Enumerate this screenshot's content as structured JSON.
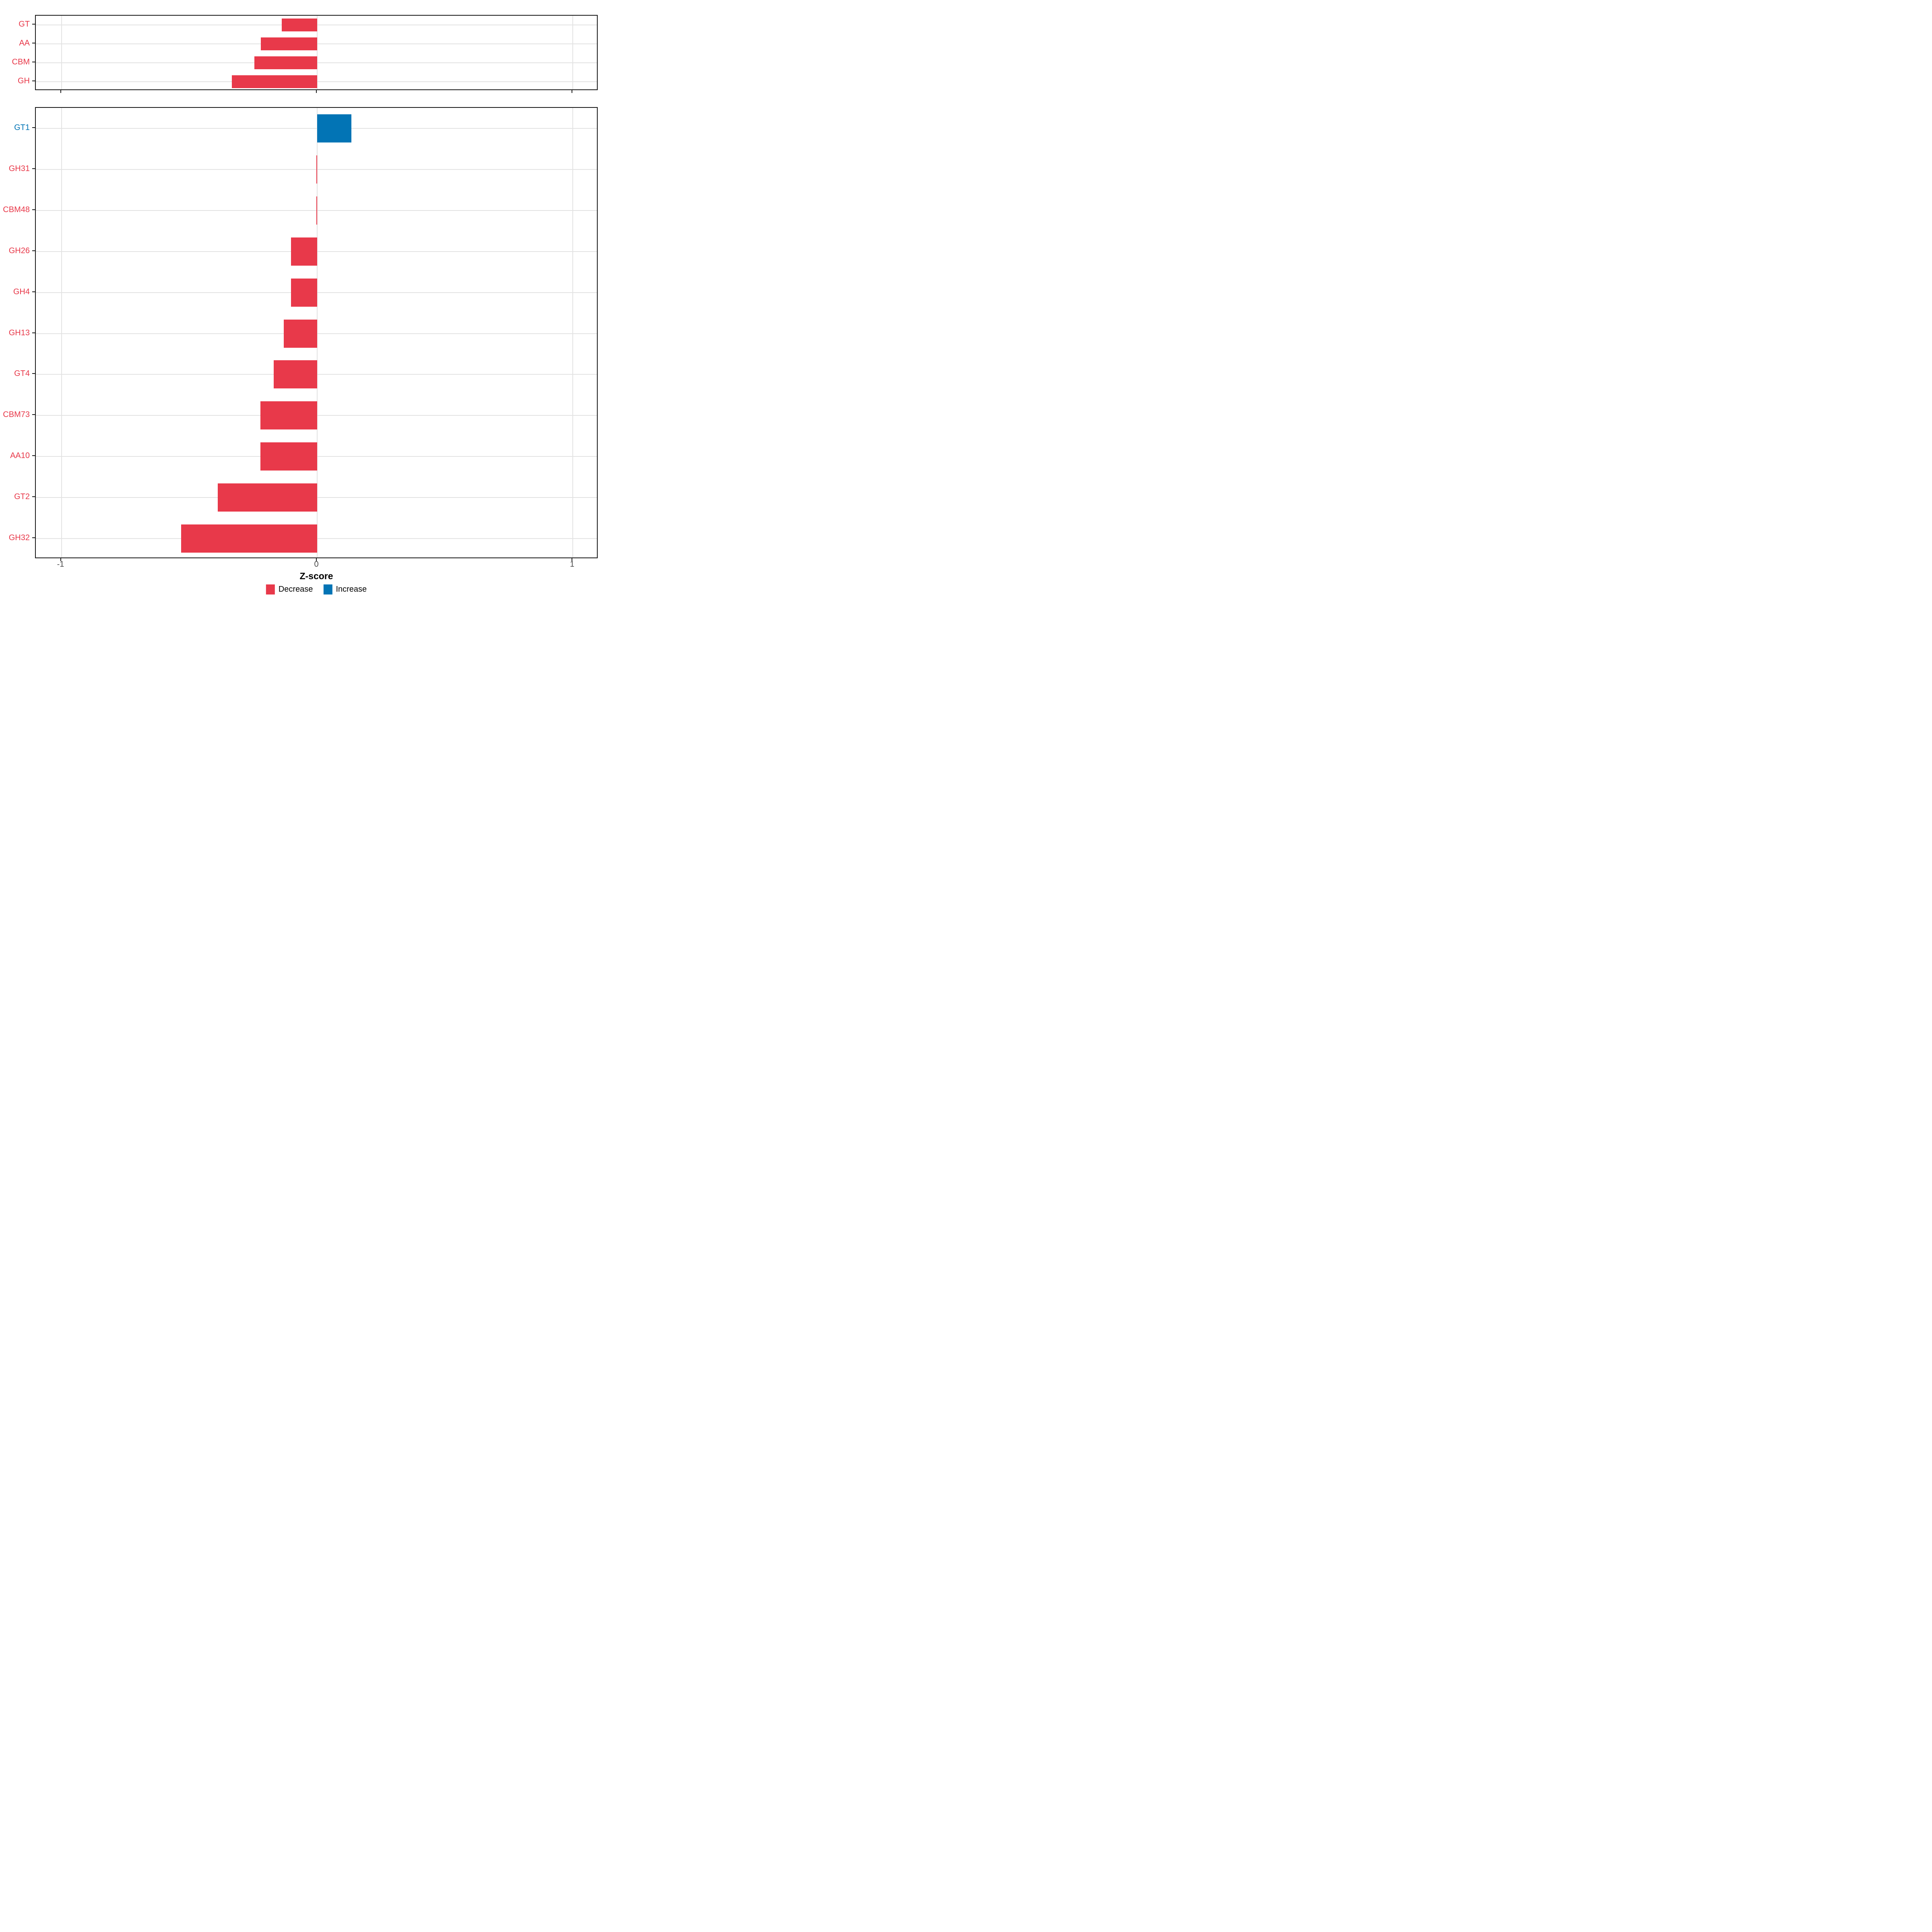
{
  "chart_data": {
    "type": "bar",
    "orientation": "horizontal",
    "xlabel": "Z-score",
    "xlim": [
      -1.1,
      1.1
    ],
    "x_ticks": [
      {
        "value": -1,
        "label": "-1"
      },
      {
        "value": 0,
        "label": "0"
      },
      {
        "value": 1,
        "label": "1"
      }
    ],
    "grid": "major-only",
    "legend_position": "bottom",
    "colors": {
      "Decrease": "#E8394A",
      "Increase": "#0274B5"
    },
    "axis_text_color": "#4d4d4d",
    "gridline_color": "#e3e3e3",
    "panel_border_color": "#1a1a1a",
    "legend": [
      {
        "label": "Decrease",
        "group": "Decrease"
      },
      {
        "label": "Increase",
        "group": "Increase"
      }
    ],
    "facets": [
      {
        "name": "facet-top",
        "bars": [
          {
            "label": "GT",
            "value": -0.139,
            "group": "Decrease"
          },
          {
            "label": "AA",
            "value": -0.22,
            "group": "Decrease"
          },
          {
            "label": "CBM",
            "value": -0.246,
            "group": "Decrease"
          },
          {
            "label": "GH",
            "value": -0.334,
            "group": "Decrease"
          }
        ]
      },
      {
        "name": "facet-bottom",
        "bars": [
          {
            "label": "GT1",
            "value": 0.133,
            "group": "Increase"
          },
          {
            "label": "GH31",
            "value": -0.003,
            "group": "Decrease"
          },
          {
            "label": "CBM48",
            "value": -0.003,
            "group": "Decrease"
          },
          {
            "label": "GH26",
            "value": -0.102,
            "group": "Decrease"
          },
          {
            "label": "GH4",
            "value": -0.102,
            "group": "Decrease"
          },
          {
            "label": "GH13",
            "value": -0.13,
            "group": "Decrease"
          },
          {
            "label": "GT4",
            "value": -0.17,
            "group": "Decrease"
          },
          {
            "label": "CBM73",
            "value": -0.222,
            "group": "Decrease"
          },
          {
            "label": "AA10",
            "value": -0.222,
            "group": "Decrease"
          },
          {
            "label": "GT2",
            "value": -0.389,
            "group": "Decrease"
          },
          {
            "label": "GH32",
            "value": -0.532,
            "group": "Decrease"
          }
        ]
      }
    ]
  }
}
